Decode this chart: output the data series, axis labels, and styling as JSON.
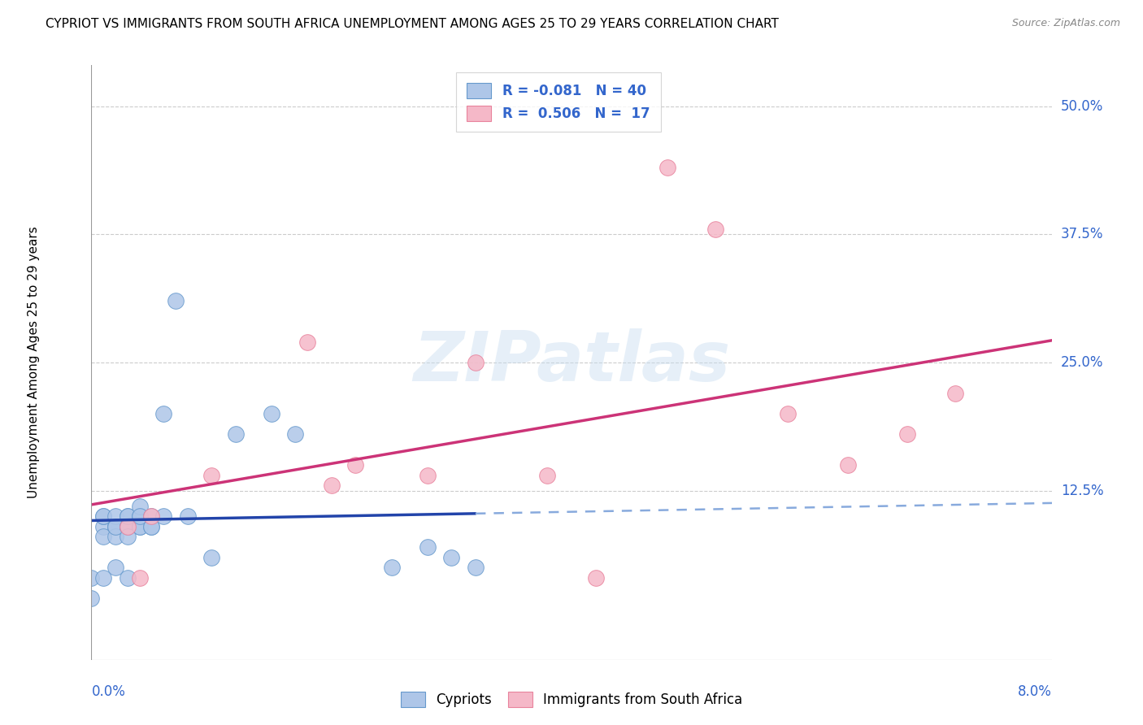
{
  "title": "CYPRIOT VS IMMIGRANTS FROM SOUTH AFRICA UNEMPLOYMENT AMONG AGES 25 TO 29 YEARS CORRELATION CHART",
  "source": "Source: ZipAtlas.com",
  "ylabel": "Unemployment Among Ages 25 to 29 years",
  "x_range": [
    0.0,
    0.08
  ],
  "y_range": [
    -0.04,
    0.54
  ],
  "cypriot_color": "#aec6e8",
  "cypriot_edge_color": "#6699cc",
  "immigrant_color": "#f5b8c8",
  "immigrant_edge_color": "#e8829c",
  "cypriot_R": -0.081,
  "cypriot_N": 40,
  "immigrant_R": 0.506,
  "immigrant_N": 17,
  "cypriot_line_color": "#2244aa",
  "cypriot_dash_color": "#88aadd",
  "immigrant_line_color": "#cc3377",
  "watermark": "ZIPatlas",
  "cypriot_scatter_x": [
    0.001,
    0.001,
    0.001,
    0.001,
    0.002,
    0.002,
    0.002,
    0.002,
    0.002,
    0.003,
    0.003,
    0.003,
    0.003,
    0.003,
    0.003,
    0.004,
    0.004,
    0.004,
    0.004,
    0.004,
    0.005,
    0.005,
    0.005,
    0.006,
    0.006,
    0.007,
    0.008,
    0.01,
    0.012,
    0.015,
    0.017,
    0.0,
    0.0,
    0.001,
    0.002,
    0.003,
    0.025,
    0.03,
    0.032,
    0.028
  ],
  "cypriot_scatter_y": [
    0.09,
    0.1,
    0.1,
    0.08,
    0.09,
    0.09,
    0.08,
    0.1,
    0.09,
    0.09,
    0.1,
    0.09,
    0.09,
    0.1,
    0.08,
    0.1,
    0.09,
    0.11,
    0.09,
    0.1,
    0.1,
    0.09,
    0.09,
    0.1,
    0.2,
    0.31,
    0.1,
    0.06,
    0.18,
    0.2,
    0.18,
    0.04,
    0.02,
    0.04,
    0.05,
    0.04,
    0.05,
    0.06,
    0.05,
    0.07
  ],
  "immigrant_scatter_x": [
    0.003,
    0.004,
    0.005,
    0.01,
    0.018,
    0.02,
    0.022,
    0.028,
    0.032,
    0.038,
    0.042,
    0.048,
    0.052,
    0.058,
    0.063,
    0.068,
    0.072
  ],
  "immigrant_scatter_y": [
    0.09,
    0.04,
    0.1,
    0.14,
    0.27,
    0.13,
    0.15,
    0.14,
    0.25,
    0.14,
    0.04,
    0.44,
    0.38,
    0.2,
    0.15,
    0.18,
    0.22
  ]
}
